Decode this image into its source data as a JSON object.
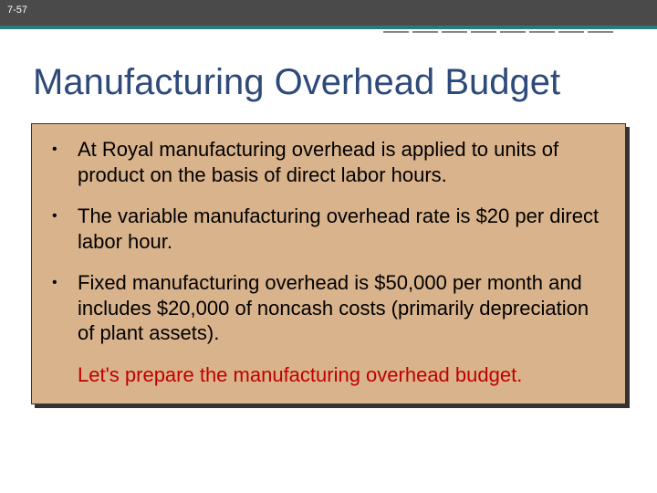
{
  "slide": {
    "number": "7-57",
    "title": "Manufacturing Overhead Budget"
  },
  "bullets": [
    "At Royal manufacturing overhead is applied to units of product on the basis of direct labor hours.",
    "The variable manufacturing overhead rate is $20 per direct labor hour.",
    "Fixed manufacturing overhead is $50,000 per month and includes $20,000 of noncash costs (primarily depreciation of plant assets)."
  ],
  "closing": "Let's prepare the manufacturing overhead budget.",
  "colors": {
    "header_bg": "#4a4a4a",
    "accent": "#2a7a7a",
    "title": "#2e4a7a",
    "box_bg": "#d9b38c",
    "closing_text": "#c00000"
  }
}
